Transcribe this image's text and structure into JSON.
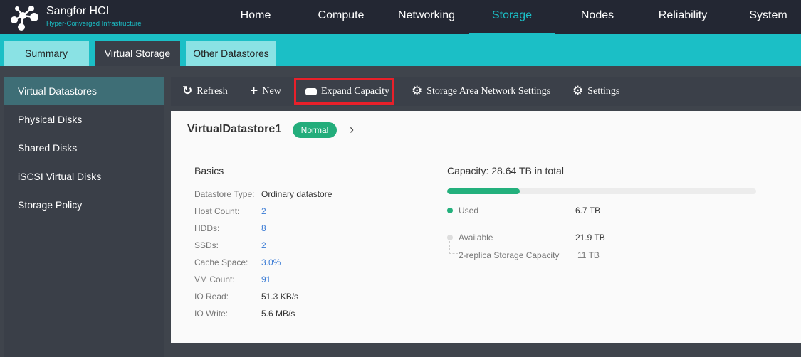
{
  "header": {
    "brand": "Sangfor HCI",
    "subtitle": "Hyper-Converged Infrastructure",
    "nav": [
      "Home",
      "Compute",
      "Networking",
      "Storage",
      "Nodes",
      "Reliability",
      "System"
    ],
    "active_nav": "Storage"
  },
  "tabs": [
    "Summary",
    "Virtual Storage",
    "Other Datastores"
  ],
  "sidebar": [
    "Virtual Datastores",
    "Physical Disks",
    "Shared Disks",
    "iSCSI Virtual Disks",
    "Storage Policy"
  ],
  "toolbar": {
    "refresh": "Refresh",
    "new": "New",
    "expand": "Expand Capacity",
    "san": "Storage Area Network Settings",
    "settings": "Settings"
  },
  "datastore": {
    "name": "VirtualDatastore1",
    "status": "Normal"
  },
  "basics": {
    "title": "Basics",
    "rows": [
      {
        "label": "Datastore Type:",
        "value": "Ordinary datastore"
      },
      {
        "label": "Host Count:",
        "value": "2"
      },
      {
        "label": "HDDs:",
        "value": "8"
      },
      {
        "label": "SSDs:",
        "value": "2"
      },
      {
        "label": "Cache Space:",
        "value": "3.0%"
      },
      {
        "label": "VM Count:",
        "value": "91"
      },
      {
        "label": "IO Read:",
        "value": "51.3 KB/s"
      },
      {
        "label": "IO Write:",
        "value": "5.6 MB/s"
      }
    ]
  },
  "capacity": {
    "title": "Capacity: 28.64 TB in total",
    "used_fraction": 0.234,
    "used_label": "Used",
    "used": "6.7 TB",
    "available_label": "Available",
    "available": "21.9 TB",
    "replica_label": "2-replica Storage Capacity",
    "replica": "11 TB",
    "used_color": "#23b07c"
  }
}
